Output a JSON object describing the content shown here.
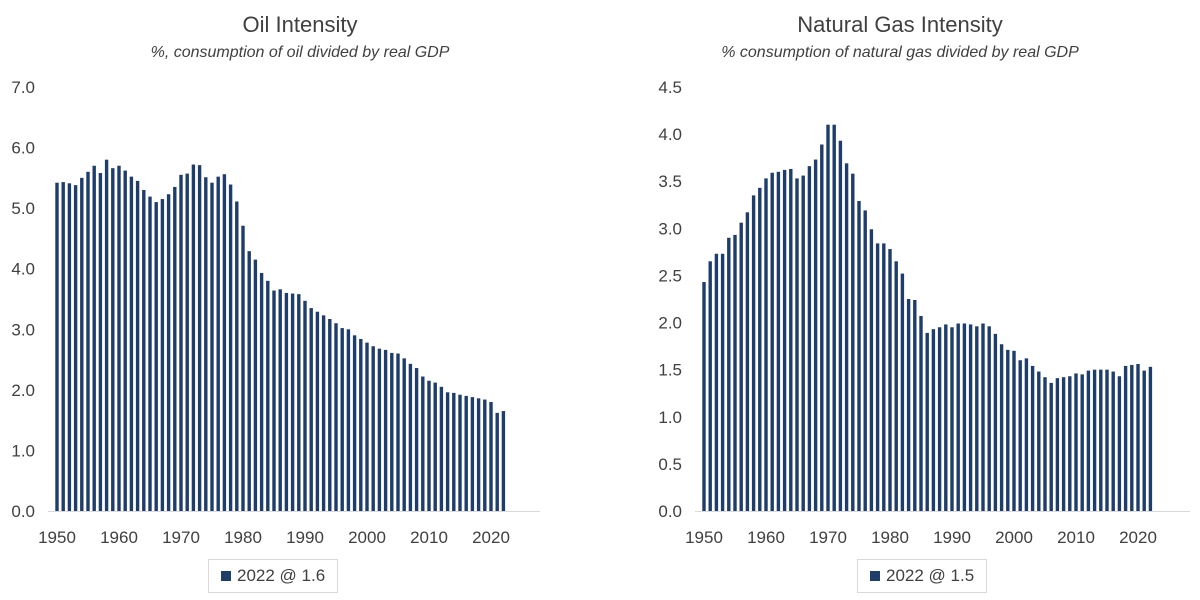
{
  "colors": {
    "bar": "#1f3d6b",
    "axis": "#d9d9d9",
    "text": "#404040"
  },
  "chart_data": [
    {
      "type": "bar",
      "title": "Oil Intensity",
      "subtitle": "%, consumption of oil divided by real GDP",
      "xlabel": "",
      "ylabel": "",
      "ylim": [
        0,
        7
      ],
      "yticks": [
        "0.0",
        "1.0",
        "2.0",
        "3.0",
        "4.0",
        "5.0",
        "6.0",
        "7.0"
      ],
      "xticks": [
        "1950",
        "1960",
        "1970",
        "1980",
        "1990",
        "2000",
        "2010",
        "2020"
      ],
      "legend": "2022 @ 1.6",
      "categories": [
        1950,
        1951,
        1952,
        1953,
        1954,
        1955,
        1956,
        1957,
        1958,
        1959,
        1960,
        1961,
        1962,
        1963,
        1964,
        1965,
        1966,
        1967,
        1968,
        1969,
        1970,
        1971,
        1972,
        1973,
        1974,
        1975,
        1976,
        1977,
        1978,
        1979,
        1980,
        1981,
        1982,
        1983,
        1984,
        1985,
        1986,
        1987,
        1988,
        1989,
        1990,
        1991,
        1992,
        1993,
        1994,
        1995,
        1996,
        1997,
        1998,
        1999,
        2000,
        2001,
        2002,
        2003,
        2004,
        2005,
        2006,
        2007,
        2008,
        2009,
        2010,
        2011,
        2012,
        2013,
        2014,
        2015,
        2016,
        2017,
        2018,
        2019,
        2020,
        2021,
        2022
      ],
      "values": [
        5.42,
        5.43,
        5.41,
        5.38,
        5.5,
        5.6,
        5.7,
        5.58,
        5.8,
        5.66,
        5.7,
        5.62,
        5.52,
        5.45,
        5.3,
        5.19,
        5.1,
        5.15,
        5.23,
        5.35,
        5.55,
        5.57,
        5.72,
        5.71,
        5.51,
        5.42,
        5.52,
        5.56,
        5.39,
        5.11,
        4.71,
        4.29,
        4.15,
        3.93,
        3.8,
        3.64,
        3.66,
        3.6,
        3.59,
        3.58,
        3.47,
        3.35,
        3.29,
        3.23,
        3.17,
        3.1,
        3.02,
        3.0,
        2.9,
        2.84,
        2.78,
        2.72,
        2.68,
        2.66,
        2.61,
        2.6,
        2.52,
        2.43,
        2.36,
        2.22,
        2.15,
        2.12,
        2.05,
        1.96,
        1.95,
        1.92,
        1.9,
        1.88,
        1.86,
        1.84,
        1.8,
        1.62,
        1.65
      ]
    },
    {
      "type": "bar",
      "title": "Natural Gas Intensity",
      "subtitle": "% consumption of natural gas divided by real GDP",
      "xlabel": "",
      "ylabel": "",
      "ylim": [
        0,
        4.5
      ],
      "yticks": [
        "0.0",
        "0.5",
        "1.0",
        "1.5",
        "2.0",
        "2.5",
        "3.0",
        "3.5",
        "4.0",
        "4.5"
      ],
      "xticks": [
        "1950",
        "1960",
        "1970",
        "1980",
        "1990",
        "2000",
        "2010",
        "2020"
      ],
      "legend": "2022 @ 1.5",
      "categories": [
        1950,
        1951,
        1952,
        1953,
        1954,
        1955,
        1956,
        1957,
        1958,
        1959,
        1960,
        1961,
        1962,
        1963,
        1964,
        1965,
        1966,
        1967,
        1968,
        1969,
        1970,
        1971,
        1972,
        1973,
        1974,
        1975,
        1976,
        1977,
        1978,
        1979,
        1980,
        1981,
        1982,
        1983,
        1984,
        1985,
        1986,
        1987,
        1988,
        1989,
        1990,
        1991,
        1992,
        1993,
        1994,
        1995,
        1996,
        1997,
        1998,
        1999,
        2000,
        2001,
        2002,
        2003,
        2004,
        2005,
        2006,
        2007,
        2008,
        2009,
        2010,
        2011,
        2012,
        2013,
        2014,
        2015,
        2016,
        2017,
        2018,
        2019,
        2020,
        2021,
        2022
      ],
      "values": [
        2.43,
        2.65,
        2.73,
        2.73,
        2.9,
        2.93,
        3.06,
        3.17,
        3.35,
        3.43,
        3.53,
        3.59,
        3.6,
        3.62,
        3.63,
        3.53,
        3.56,
        3.66,
        3.73,
        3.89,
        4.1,
        4.1,
        3.93,
        3.69,
        3.58,
        3.29,
        3.19,
        2.99,
        2.84,
        2.84,
        2.78,
        2.65,
        2.52,
        2.25,
        2.24,
        2.07,
        1.89,
        1.93,
        1.95,
        1.98,
        1.95,
        1.99,
        1.99,
        1.98,
        1.96,
        1.99,
        1.96,
        1.88,
        1.77,
        1.71,
        1.7,
        1.6,
        1.62,
        1.54,
        1.48,
        1.42,
        1.36,
        1.41,
        1.42,
        1.43,
        1.46,
        1.45,
        1.49,
        1.5,
        1.5,
        1.5,
        1.48,
        1.43,
        1.54,
        1.55,
        1.56,
        1.49,
        1.53
      ]
    }
  ]
}
